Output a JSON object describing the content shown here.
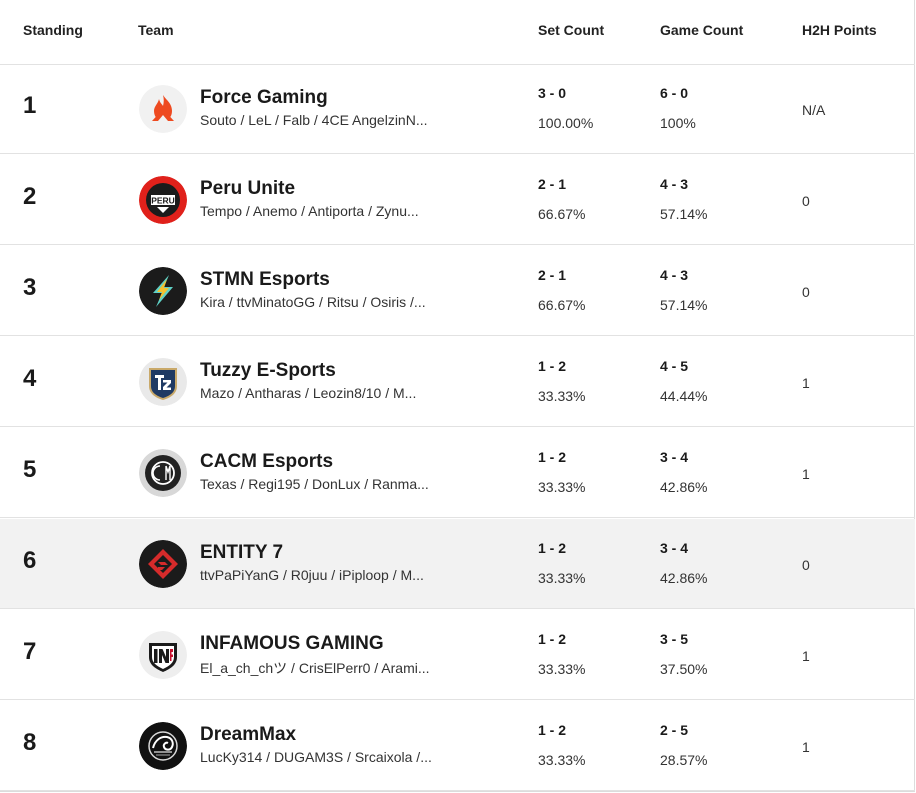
{
  "headers": {
    "standing": "Standing",
    "team": "Team",
    "set_count": "Set Count",
    "game_count": "Game Count",
    "h2h": "H2H Points"
  },
  "rows": [
    {
      "standing": "1",
      "team": "Force Gaming",
      "players": "Souto / LeL / Falb / 4CE AngelzinN...",
      "set_record": "3 - 0",
      "set_pct": "100.00%",
      "game_record": "6 - 0",
      "game_pct": "100%",
      "h2h": "N/A",
      "logo_icon": "force-gaming-logo",
      "logo_color": "#ee4a20"
    },
    {
      "standing": "2",
      "team": "Peru Unite",
      "players": "Tempo / Anemo / Antiporta / Zynu...",
      "set_record": "2 - 1",
      "set_pct": "66.67%",
      "game_record": "4 - 3",
      "game_pct": "57.14%",
      "h2h": "0",
      "logo_icon": "peru-unite-logo",
      "logo_color": "#e0211b"
    },
    {
      "standing": "3",
      "team": "STMN Esports",
      "players": "Kira / ttvMinatoGG / Ritsu / Osiris /...",
      "set_record": "2 - 1",
      "set_pct": "66.67%",
      "game_record": "4 - 3",
      "game_pct": "57.14%",
      "h2h": "0",
      "logo_icon": "stmn-esports-logo",
      "logo_color": "#1b1b1b"
    },
    {
      "standing": "4",
      "team": "Tuzzy E-Sports",
      "players": "Mazo / Antharas / Leozin8/10 / M...",
      "set_record": "1 - 2",
      "set_pct": "33.33%",
      "game_record": "4 - 5",
      "game_pct": "44.44%",
      "h2h": "1",
      "logo_icon": "tuzzy-esports-logo",
      "logo_color": "#1f3a63"
    },
    {
      "standing": "5",
      "team": "CACM Esports",
      "players": "Texas / Regi195 / DonLux / Ranma...",
      "set_record": "1 - 2",
      "set_pct": "33.33%",
      "game_record": "3 - 4",
      "game_pct": "42.86%",
      "h2h": "1",
      "logo_icon": "cacm-esports-logo",
      "logo_color": "#222222"
    },
    {
      "standing": "6",
      "team": "ENTITY 7",
      "players": "ttvPaPiYanG / R0juu / iPiploop / M...",
      "set_record": "1 - 2",
      "set_pct": "33.33%",
      "game_record": "3 - 4",
      "game_pct": "42.86%",
      "h2h": "0",
      "logo_icon": "entity7-logo",
      "logo_color": "#d62b2b"
    },
    {
      "standing": "7",
      "team": "INFAMOUS GAMING",
      "players": "El_a_ch_chツ / CrisElPerr0 / Arami...",
      "set_record": "1 - 2",
      "set_pct": "33.33%",
      "game_record": "3 - 5",
      "game_pct": "37.50%",
      "h2h": "1",
      "logo_icon": "infamous-gaming-logo",
      "logo_color": "#c8102e"
    },
    {
      "standing": "8",
      "team": "DreamMax",
      "players": "LucKy314 / DUGAM3S / Srcaixola /...",
      "set_record": "1 - 2",
      "set_pct": "33.33%",
      "game_record": "2 - 5",
      "game_pct": "28.57%",
      "h2h": "1",
      "logo_icon": "dreammax-logo",
      "logo_color": "#111111"
    }
  ]
}
